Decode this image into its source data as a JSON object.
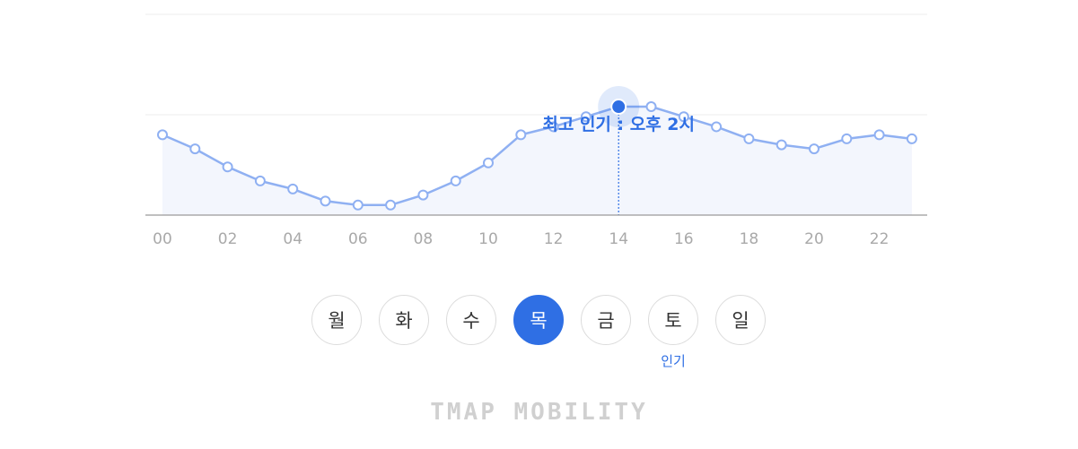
{
  "chart_data": {
    "type": "line",
    "x": [
      0,
      1,
      2,
      3,
      4,
      5,
      6,
      7,
      8,
      9,
      10,
      11,
      12,
      13,
      14,
      15,
      16,
      17,
      18,
      19,
      20,
      21,
      22,
      23
    ],
    "values": [
      40,
      33,
      24,
      17,
      13,
      7,
      5,
      5,
      10,
      17,
      26,
      40,
      44,
      49,
      54,
      54,
      49,
      44,
      38,
      35,
      33,
      38,
      40,
      38
    ],
    "xticks": [
      "00",
      "02",
      "04",
      "06",
      "08",
      "10",
      "12",
      "14",
      "16",
      "18",
      "20",
      "22"
    ],
    "ylim": [
      0,
      100
    ],
    "grid": true,
    "peak_index": 14,
    "peak_label": "최고 인기 : 오후 2시",
    "colors": {
      "line": "#8fb0f2",
      "fill": "#f3f6fd",
      "accent": "#2f6fe4",
      "grid": "#ececec",
      "axis": "#9a9a9a"
    }
  },
  "days": [
    {
      "label": "월"
    },
    {
      "label": "화"
    },
    {
      "label": "수"
    },
    {
      "label": "목",
      "active": true
    },
    {
      "label": "금"
    },
    {
      "label": "토",
      "badge": "인기"
    },
    {
      "label": "일"
    }
  ],
  "brand": "TMAP MOBILITY"
}
